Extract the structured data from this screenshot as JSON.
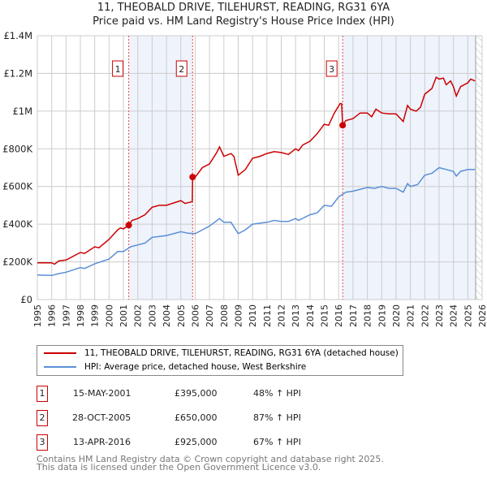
{
  "chart_data": {
    "type": "line",
    "title": "11, THEOBALD DRIVE, TILEHURST, READING, RG31 6YA",
    "subtitle": "Price paid vs. HM Land Registry's House Price Index (HPI)",
    "xlim": [
      1995,
      2026
    ],
    "ylim": [
      0,
      1400000
    ],
    "y_ticks": [
      {
        "v": 0,
        "label": "£0"
      },
      {
        "v": 200000,
        "label": "£200K"
      },
      {
        "v": 400000,
        "label": "£400K"
      },
      {
        "v": 600000,
        "label": "£600K"
      },
      {
        "v": 800000,
        "label": "£800K"
      },
      {
        "v": 1000000,
        "label": "£1M"
      },
      {
        "v": 1200000,
        "label": "£1.2M"
      },
      {
        "v": 1400000,
        "label": "£1.4M"
      }
    ],
    "x_ticks": [
      "1995",
      "1996",
      "1997",
      "1998",
      "1999",
      "2000",
      "2001",
      "2002",
      "2003",
      "2004",
      "2005",
      "2006",
      "2007",
      "2008",
      "2009",
      "2010",
      "2011",
      "2012",
      "2013",
      "2014",
      "2015",
      "2016",
      "2017",
      "2018",
      "2019",
      "2020",
      "2021",
      "2022",
      "2023",
      "2024",
      "2025",
      "2026"
    ],
    "grid": true,
    "series": [
      {
        "name": "11, THEOBALD DRIVE, TILEHURST, READING, RG31 6YA (detached house)",
        "color": "#cc0000",
        "x": [
          1995,
          1996,
          1996.2,
          1996.5,
          1997,
          1998,
          1998.3,
          1999,
          1999.3,
          2000,
          2000.6,
          2000.8,
          2001,
          2001.37,
          2001.6,
          2002,
          2002.5,
          2003,
          2003.5,
          2004,
          2005,
          2005.3,
          2005.8,
          2005.82,
          2006,
          2006.5,
          2007,
          2007.5,
          2007.7,
          2008,
          2008.5,
          2008.7,
          2009,
          2009.5,
          2010,
          2010.5,
          2011,
          2011.5,
          2012,
          2012.5,
          2013,
          2013.2,
          2013.5,
          2014,
          2014.5,
          2015,
          2015.3,
          2015.7,
          2016.1,
          2016.2,
          2016.28,
          2016.5,
          2017,
          2017.5,
          2018,
          2018.3,
          2018.6,
          2019,
          2019.5,
          2020,
          2020.5,
          2020.8,
          2021,
          2021.4,
          2021.7,
          2022,
          2022.5,
          2022.8,
          2023,
          2023.3,
          2023.5,
          2023.8,
          2024,
          2024.2,
          2024.5,
          2025,
          2025.2,
          2025.5
        ],
        "y": [
          195000,
          195000,
          188000,
          205000,
          210000,
          250000,
          245000,
          280000,
          275000,
          320000,
          370000,
          380000,
          375000,
          395000,
          420000,
          430000,
          450000,
          490000,
          500000,
          500000,
          525000,
          510000,
          520000,
          650000,
          650000,
          700000,
          720000,
          780000,
          810000,
          760000,
          775000,
          760000,
          660000,
          690000,
          750000,
          760000,
          775000,
          785000,
          780000,
          770000,
          800000,
          790000,
          820000,
          840000,
          880000,
          930000,
          925000,
          990000,
          1040000,
          1040000,
          925000,
          950000,
          960000,
          990000,
          990000,
          970000,
          1010000,
          990000,
          985000,
          985000,
          945000,
          1030000,
          1010000,
          1000000,
          1020000,
          1090000,
          1120000,
          1180000,
          1170000,
          1175000,
          1140000,
          1160000,
          1130000,
          1080000,
          1130000,
          1150000,
          1170000,
          1160000
        ]
      },
      {
        "name": "HPI: Average price, detached house, West Berkshire",
        "color": "#5b8fd6",
        "x": [
          1995,
          1996,
          1996.5,
          1997,
          1998,
          1998.3,
          1999,
          2000,
          2000.6,
          2001,
          2001.5,
          2002,
          2002.5,
          2003,
          2004,
          2005,
          2005.5,
          2006,
          2006.5,
          2007,
          2007.7,
          2008,
          2008.5,
          2009,
          2009.5,
          2010,
          2011,
          2011.5,
          2012,
          2012.5,
          2013,
          2013.2,
          2014,
          2014.5,
          2015,
          2015.5,
          2016,
          2016.5,
          2017,
          2018,
          2018.5,
          2019,
          2019.5,
          2020,
          2020.5,
          2020.8,
          2021,
          2021.5,
          2022,
          2022.5,
          2023,
          2023.5,
          2024,
          2024.2,
          2024.5,
          2025,
          2025.5
        ],
        "y": [
          130000,
          128000,
          138000,
          145000,
          170000,
          165000,
          190000,
          215000,
          255000,
          255000,
          280000,
          290000,
          300000,
          330000,
          340000,
          360000,
          352000,
          350000,
          370000,
          390000,
          430000,
          410000,
          410000,
          350000,
          370000,
          400000,
          410000,
          420000,
          415000,
          415000,
          430000,
          420000,
          450000,
          460000,
          500000,
          495000,
          545000,
          570000,
          575000,
          595000,
          590000,
          600000,
          590000,
          590000,
          570000,
          615000,
          600000,
          610000,
          660000,
          670000,
          700000,
          690000,
          680000,
          655000,
          680000,
          690000,
          690000
        ]
      }
    ],
    "sales": [
      {
        "id": "1",
        "date": "15-MAY-2001",
        "x": 2001.37,
        "price": 395000,
        "price_label": "£395,000",
        "hpi": "48% ↑ HPI"
      },
      {
        "id": "2",
        "date": "28-OCT-2005",
        "x": 2005.82,
        "price": 650000,
        "price_label": "£650,000",
        "hpi": "87% ↑ HPI"
      },
      {
        "id": "3",
        "date": "13-APR-2016",
        "x": 2016.28,
        "price": 925000,
        "price_label": "£925,000",
        "hpi": "67% ↑ HPI"
      }
    ],
    "data_end": 2025.55
  },
  "footer": {
    "line1": "Contains HM Land Registry data © Crown copyright and database right 2025.",
    "line2": "This data is licensed under the Open Government Licence v3.0."
  }
}
